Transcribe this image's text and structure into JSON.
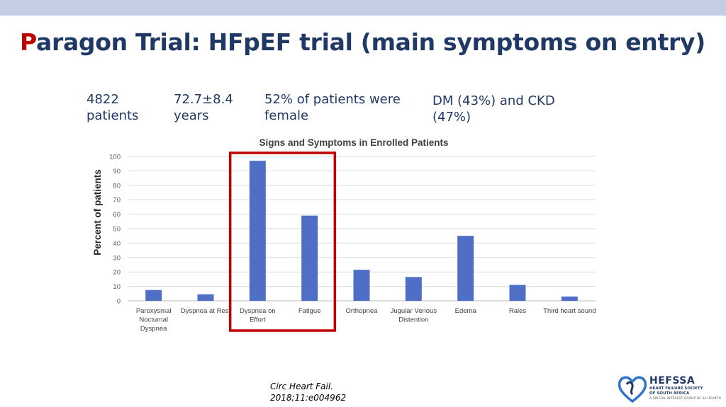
{
  "slide": {
    "title_first_letter": "P",
    "title_rest": "aragon Trial:  HFpEF trial (main symptoms on entry)",
    "stats": {
      "patients": "4822 patients",
      "age": "72.7±8.4 years",
      "female": "52% of patients were female",
      "dm_ckd": "DM (43%)  and CKD (47%)"
    },
    "citation": "Circ Heart Fail. 2018;11:e004962",
    "logo": {
      "name": "HEFSSA",
      "subtitle": "HEART FAILURE SOCIETY OF SOUTH AFRICA",
      "tagline": "A SPECIAL INTEREST GROUP OF SA HEART®"
    },
    "colors": {
      "title": "#1f3864",
      "title_accent": "#c00000",
      "bar": "#4f6fc6",
      "highlight_box": "#c00000"
    }
  },
  "chart_data": {
    "type": "bar",
    "title": "Signs and Symptoms in Enrolled Patients",
    "ylabel": "Percent of patients",
    "xlabel": "",
    "ylim": [
      0,
      100
    ],
    "yticks": [
      0,
      10,
      20,
      30,
      40,
      50,
      60,
      70,
      80,
      90,
      100
    ],
    "categories": [
      [
        "Paroxysmal",
        "Nocturnal",
        "Dyspnea"
      ],
      [
        "Dyspnea at Rest"
      ],
      [
        "Dyspnea on",
        "Effort"
      ],
      [
        "Fatigue"
      ],
      [
        "Orthopnea"
      ],
      [
        "Jugular Venous",
        "Distention"
      ],
      [
        "Edema"
      ],
      [
        "Rales"
      ],
      [
        "Third heart sound"
      ]
    ],
    "values": [
      7.5,
      4.5,
      97,
      59,
      21.5,
      16.5,
      45,
      11,
      3
    ],
    "highlighted_categories": [
      "Dyspnea on Effort",
      "Fatigue"
    ],
    "grid": true,
    "legend": "none"
  }
}
